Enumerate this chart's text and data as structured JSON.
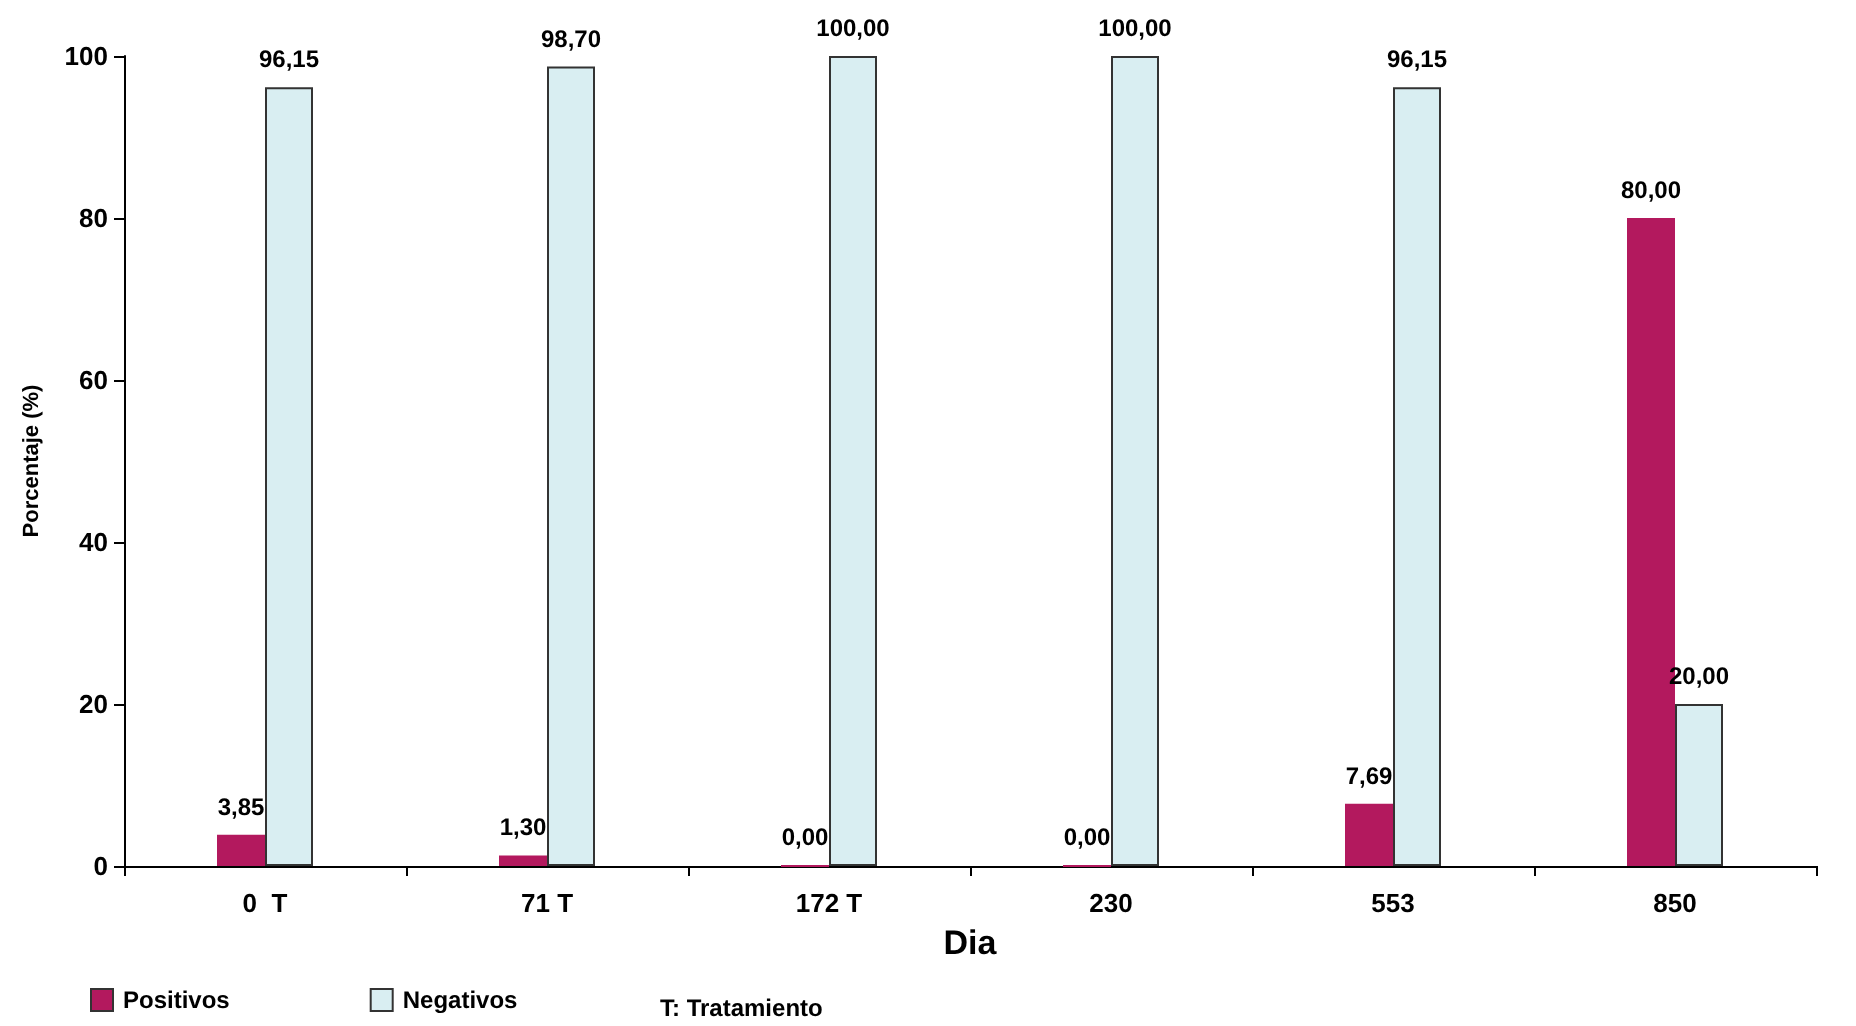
{
  "chart_data": {
    "type": "bar",
    "xlabel": "Dia",
    "ylabel": "Porcentaje (%)",
    "categories": [
      "0  T",
      "71 T",
      "172 T",
      "230",
      "553",
      "850"
    ],
    "series": [
      {
        "name": "Positivos",
        "color": "#b3195e",
        "values": [
          3.85,
          1.3,
          0,
          0,
          7.69,
          80
        ],
        "value_labels": [
          "3,85",
          "1,30",
          "0,00",
          "0,00",
          "7,69",
          "80,00"
        ]
      },
      {
        "name": "Negativos",
        "color": "#d9eef2",
        "values": [
          96.15,
          98.7,
          100,
          100,
          96.15,
          20
        ],
        "value_labels": [
          "96,15",
          "98,70",
          "100,00",
          "100,00",
          "96,15",
          "20,00"
        ]
      }
    ],
    "ylim": [
      0,
      100
    ],
    "yticks": [
      0,
      20,
      40,
      60,
      80,
      100
    ],
    "grid": false,
    "legend": "bottom left",
    "annotations": [
      "T: Tratamiento"
    ]
  }
}
